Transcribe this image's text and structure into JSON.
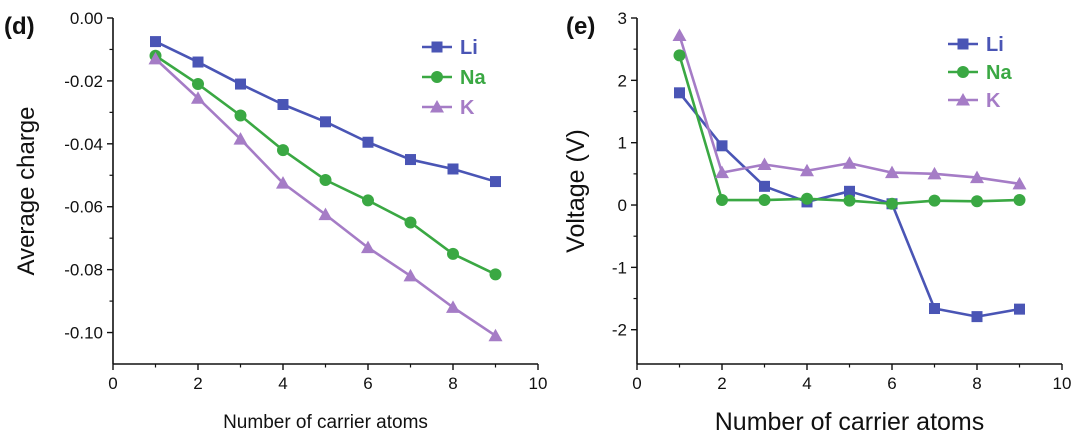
{
  "chart_data": [
    {
      "type": "line",
      "panel_label": "(d)",
      "title": "",
      "xlabel": "Number of carrier atoms",
      "ylabel": "Average charge",
      "xlim": [
        0,
        10
      ],
      "ylim": [
        -0.11,
        0.0
      ],
      "xticks": [
        0,
        2,
        4,
        6,
        8,
        10
      ],
      "xtick_labels": [
        "0",
        "2",
        "4",
        "6",
        "8",
        "10"
      ],
      "yticks": [
        0.0,
        -0.02,
        -0.04,
        -0.06,
        -0.08,
        -0.1
      ],
      "ytick_labels": [
        "0.00",
        "-0.02",
        "-0.04",
        "-0.06",
        "-0.08",
        "-0.10"
      ],
      "legend_position": "top-right",
      "grid": false,
      "x": [
        1,
        2,
        3,
        4,
        5,
        6,
        7,
        8,
        9
      ],
      "series": [
        {
          "name": "Li",
          "color": "#4a55b5",
          "marker": "square",
          "values": [
            -0.0075,
            -0.014,
            -0.021,
            -0.0275,
            -0.033,
            -0.0395,
            -0.045,
            -0.048,
            -0.052
          ]
        },
        {
          "name": "Na",
          "color": "#3aa843",
          "marker": "circle",
          "values": [
            -0.012,
            -0.021,
            -0.031,
            -0.042,
            -0.0515,
            -0.058,
            -0.065,
            -0.075,
            -0.0815
          ]
        },
        {
          "name": "K",
          "color": "#a57cc6",
          "marker": "triangle",
          "values": [
            -0.013,
            -0.0255,
            -0.0385,
            -0.0525,
            -0.0625,
            -0.073,
            -0.082,
            -0.092,
            -0.101
          ]
        }
      ]
    },
    {
      "type": "line",
      "panel_label": "(e)",
      "title": "",
      "xlabel": "Number of carrier atoms",
      "ylabel": "Voltage (V)",
      "xlim": [
        0,
        10
      ],
      "ylim": [
        -2.55,
        3.0
      ],
      "xticks": [
        0,
        2,
        4,
        6,
        8,
        10
      ],
      "xtick_labels": [
        "0",
        "2",
        "4",
        "6",
        "8",
        "10"
      ],
      "yticks": [
        3,
        2,
        1,
        0,
        -1,
        -2
      ],
      "ytick_labels": [
        "3",
        "2",
        "1",
        "0",
        "-1",
        "-2"
      ],
      "legend_position": "top-right",
      "grid": false,
      "x": [
        1,
        2,
        3,
        4,
        5,
        6,
        7,
        8,
        9
      ],
      "series": [
        {
          "name": "Li",
          "color": "#4a55b5",
          "marker": "square",
          "values": [
            1.8,
            0.95,
            0.3,
            0.05,
            0.22,
            0.02,
            -1.66,
            -1.79,
            -1.67
          ]
        },
        {
          "name": "Na",
          "color": "#3aa843",
          "marker": "circle",
          "values": [
            2.4,
            0.08,
            0.08,
            0.1,
            0.07,
            0.02,
            0.07,
            0.06,
            0.08
          ]
        },
        {
          "name": "K",
          "color": "#a57cc6",
          "marker": "triangle",
          "values": [
            2.72,
            0.52,
            0.65,
            0.55,
            0.67,
            0.52,
            0.5,
            0.44,
            0.34
          ]
        }
      ]
    }
  ]
}
